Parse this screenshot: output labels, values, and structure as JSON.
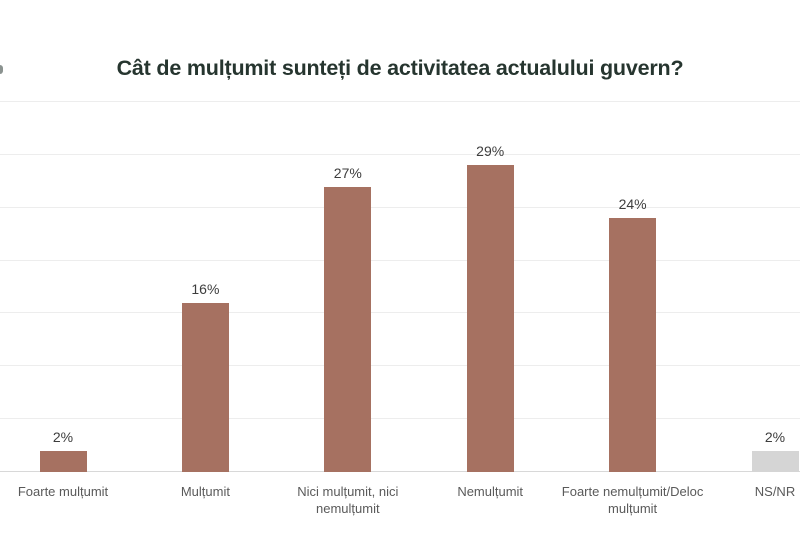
{
  "title": "Cât de mulțumit sunteți de activitatea actualului guvern?",
  "colors": {
    "bar_primary": "#a67161",
    "bar_neutral": "#d5d5d5",
    "title_text": "#26352f",
    "gridline": "#ededed",
    "axis_line": "#d8d8d8",
    "value_label": "#3d3d3d",
    "category_label": "#5a5a5a"
  },
  "chart_data": {
    "type": "bar",
    "title": "Cât de mulțumit sunteți de activitatea actualului guvern?",
    "categories": [
      "Foarte mulțumit",
      "Mulțumit",
      "Nici mulțumit, nici nemulțumit",
      "Nemulțumit",
      "Foarte nemulțumit/Deloc mulțumit",
      "NS/NR"
    ],
    "values": [
      2,
      16,
      27,
      29,
      24,
      2
    ],
    "value_labels": [
      "2%",
      "16%",
      "27%",
      "29%",
      "24%",
      "2%"
    ],
    "bar_colors": [
      "#a67161",
      "#a67161",
      "#a67161",
      "#a67161",
      "#a67161",
      "#d5d5d5"
    ],
    "xlabel": "",
    "ylabel": "",
    "ylim": [
      0,
      35
    ],
    "grid": true,
    "grid_step": 5,
    "grid_axis": "y",
    "legend": "none",
    "value_labels_position": "above-bars"
  }
}
